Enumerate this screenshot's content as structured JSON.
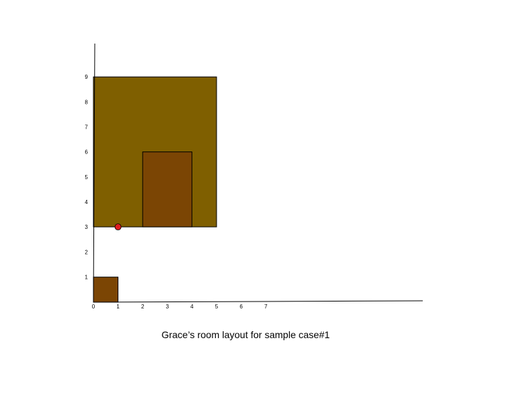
{
  "caption": "Grace’s room layout for sample case#1",
  "colors": {
    "room": "#7F5F00",
    "furniture": "#7B4504",
    "point": "#E01E1E",
    "axis": "#000000"
  },
  "x_ticks": [
    "0",
    "1",
    "2",
    "3",
    "4",
    "5",
    "6",
    "7"
  ],
  "y_ticks": [
    "1",
    "2",
    "3",
    "4",
    "5",
    "6",
    "7",
    "8",
    "9"
  ],
  "room": {
    "x0": 0,
    "y0": 3,
    "x1": 5,
    "y1": 9
  },
  "furniture": [
    {
      "x0": 2,
      "y0": 3,
      "x1": 4,
      "y1": 6
    },
    {
      "x0": 0,
      "y0": 0,
      "x1": 1,
      "y1": 1
    }
  ],
  "point": {
    "x": 1,
    "y": 3
  }
}
